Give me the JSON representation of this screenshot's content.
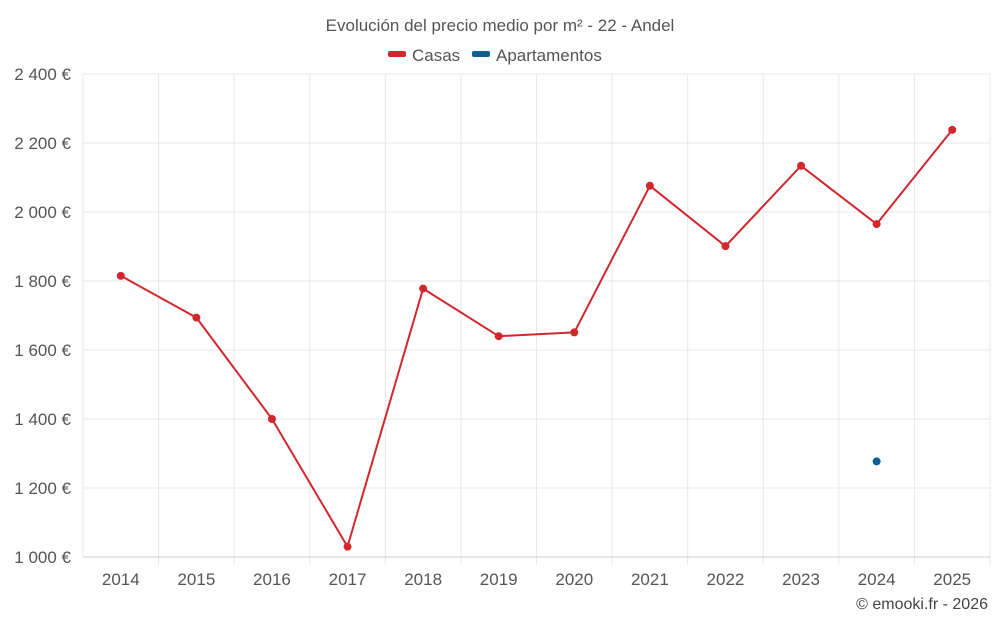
{
  "chart_data": {
    "type": "line",
    "title": "Evolución del precio medio por m² - 22 - Andel",
    "categories": [
      "2014",
      "2015",
      "2016",
      "2017",
      "2018",
      "2019",
      "2020",
      "2021",
      "2022",
      "2023",
      "2024",
      "2025"
    ],
    "series": [
      {
        "name": "Casas",
        "color": "#d0282e",
        "values": [
          1815,
          1694,
          1400,
          1030,
          1778,
          1640,
          1651,
          2076,
          1901,
          2134,
          1965,
          2238
        ]
      },
      {
        "name": "Apartamentos",
        "color": "#0b5f91",
        "values": [
          null,
          null,
          null,
          null,
          null,
          null,
          null,
          null,
          null,
          null,
          1277,
          null
        ]
      }
    ],
    "ylim": [
      1000,
      2400
    ],
    "yticks": [
      1000,
      1200,
      1400,
      1600,
      1800,
      2000,
      2200,
      2400
    ],
    "ytick_labels": [
      "1 000 €",
      "1 200 €",
      "1 400 €",
      "1 600 €",
      "1 800 €",
      "2 000 €",
      "2 200 €",
      "2 400 €"
    ],
    "xlabel": "",
    "ylabel": "",
    "grid": true,
    "legend_position": "top-center",
    "credit": "© emooki.fr - 2026"
  }
}
